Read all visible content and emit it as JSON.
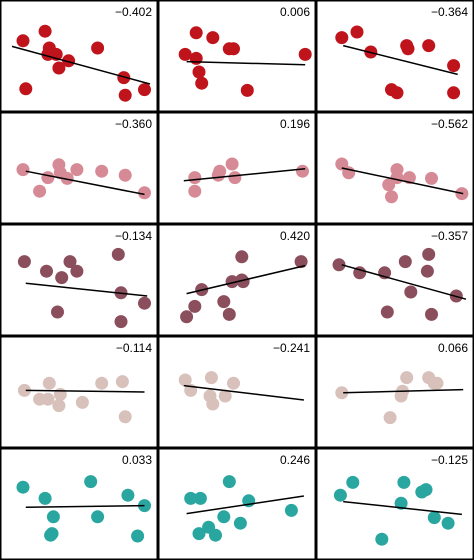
{
  "chart_data": {
    "type": "scatter",
    "layout": "5 rows x 3 columns of scatter panels, each with a fitted regression line and its correlation coefficient printed in the top-right corner",
    "x_range": [
      0,
      1
    ],
    "y_range": [
      0,
      1
    ],
    "row_colors": [
      "#c0141c",
      "#d68a96",
      "#8b4e5c",
      "#d8c0bb",
      "#2aa6a0"
    ],
    "panels": [
      {
        "row": 0,
        "col": 0,
        "label": "−0.402",
        "x": [
          0.08,
          0.26,
          0.27,
          0.32,
          0.34,
          0.41,
          0.62,
          0.81,
          0.82,
          0.96,
          0.1,
          0.24
        ],
        "y": [
          0.79,
          0.62,
          0.7,
          0.62,
          0.45,
          0.54,
          0.7,
          0.33,
          0.11,
          0.18,
          0.19,
          0.91
        ],
        "fit": [
          [
            0.0,
            0.72
          ],
          [
            1.0,
            0.25
          ]
        ]
      },
      {
        "row": 0,
        "col": 1,
        "label": "0.006",
        "x": [
          0.11,
          0.19,
          0.19,
          0.21,
          0.23,
          0.31,
          0.43,
          0.46,
          0.56,
          0.98
        ],
        "y": [
          0.62,
          0.89,
          0.57,
          0.4,
          0.26,
          0.83,
          0.69,
          0.69,
          0.17,
          0.62
        ],
        "fit": [
          [
            0.12,
            0.53
          ],
          [
            0.98,
            0.49
          ]
        ]
      },
      {
        "row": 0,
        "col": 2,
        "label": "−0.364",
        "x": [
          0.1,
          0.21,
          0.31,
          0.57,
          0.58,
          0.73,
          0.91,
          0.46,
          0.5,
          0.91
        ],
        "y": [
          0.83,
          0.9,
          0.65,
          0.73,
          0.69,
          0.73,
          0.48,
          0.18,
          0.14,
          0.14
        ],
        "fit": [
          [
            0.11,
            0.73
          ],
          [
            0.94,
            0.37
          ]
        ]
      },
      {
        "row": 1,
        "col": 0,
        "label": "−0.360",
        "x": [
          0.08,
          0.2,
          0.26,
          0.34,
          0.35,
          0.4,
          0.47,
          0.65,
          0.82,
          0.96
        ],
        "y": [
          0.58,
          0.31,
          0.48,
          0.64,
          0.54,
          0.47,
          0.58,
          0.56,
          0.51,
          0.29
        ],
        "fit": [
          [
            0.1,
            0.56
          ],
          [
            0.96,
            0.27
          ]
        ]
      },
      {
        "row": 1,
        "col": 1,
        "label": "0.196",
        "x": [
          0.18,
          0.18,
          0.35,
          0.36,
          0.45,
          0.47,
          0.96
        ],
        "y": [
          0.48,
          0.31,
          0.51,
          0.56,
          0.65,
          0.48,
          0.56
        ],
        "fit": [
          [
            0.1,
            0.44
          ],
          [
            0.98,
            0.59
          ]
        ]
      },
      {
        "row": 1,
        "col": 2,
        "label": "−0.562",
        "x": [
          0.1,
          0.15,
          0.44,
          0.46,
          0.5,
          0.5,
          0.59,
          0.75,
          0.97
        ],
        "y": [
          0.65,
          0.54,
          0.39,
          0.24,
          0.58,
          0.48,
          0.48,
          0.47,
          0.28
        ],
        "fit": [
          [
            0.1,
            0.6
          ],
          [
            0.98,
            0.28
          ]
        ]
      },
      {
        "row": 2,
        "col": 0,
        "label": "−0.134",
        "x": [
          0.09,
          0.25,
          0.36,
          0.42,
          0.47,
          0.77,
          0.96,
          0.33,
          0.79,
          0.79
        ],
        "y": [
          0.83,
          0.71,
          0.63,
          0.83,
          0.71,
          0.92,
          0.31,
          0.2,
          0.08,
          0.44
        ],
        "fit": [
          [
            0.1,
            0.56
          ],
          [
            0.98,
            0.4
          ]
        ]
      },
      {
        "row": 2,
        "col": 1,
        "label": "0.420",
        "x": [
          0.12,
          0.18,
          0.23,
          0.39,
          0.45,
          0.52,
          0.53,
          0.52,
          0.95,
          0.43
        ],
        "y": [
          0.14,
          0.27,
          0.48,
          0.33,
          0.58,
          0.6,
          0.58,
          0.89,
          0.83,
          0.17
        ],
        "fit": [
          [
            0.12,
            0.43
          ],
          [
            0.98,
            0.78
          ]
        ]
      },
      {
        "row": 2,
        "col": 2,
        "label": "−0.357",
        "x": [
          0.08,
          0.23,
          0.41,
          0.56,
          0.72,
          0.73,
          0.6,
          0.93,
          0.43,
          0.75
        ],
        "y": [
          0.79,
          0.69,
          0.69,
          0.83,
          0.71,
          0.92,
          0.45,
          0.4,
          0.2,
          0.17
        ],
        "fit": [
          [
            0.1,
            0.79
          ],
          [
            1.0,
            0.36
          ]
        ]
      },
      {
        "row": 3,
        "col": 0,
        "label": "−0.114",
        "x": [
          0.09,
          0.2,
          0.26,
          0.34,
          0.35,
          0.51,
          0.65,
          0.8,
          0.82,
          0.27
        ],
        "y": [
          0.62,
          0.51,
          0.51,
          0.43,
          0.57,
          0.47,
          0.71,
          0.73,
          0.29,
          0.71
        ],
        "fit": [
          [
            0.1,
            0.62
          ],
          [
            0.96,
            0.6
          ]
        ]
      },
      {
        "row": 3,
        "col": 1,
        "label": "−0.241",
        "x": [
          0.11,
          0.15,
          0.29,
          0.31,
          0.4,
          0.46,
          0.3
        ],
        "y": [
          0.75,
          0.62,
          0.55,
          0.45,
          0.55,
          0.71,
          0.78
        ],
        "fit": [
          [
            0.1,
            0.68
          ],
          [
            0.97,
            0.5
          ]
        ]
      },
      {
        "row": 3,
        "col": 2,
        "label": "0.066",
        "x": [
          0.1,
          0.45,
          0.53,
          0.54,
          0.57,
          0.73,
          0.79,
          0.77
        ],
        "y": [
          0.59,
          0.28,
          0.55,
          0.61,
          0.78,
          0.78,
          0.71,
          0.71
        ],
        "fit": [
          [
            0.11,
            0.59
          ],
          [
            0.98,
            0.63
          ]
        ]
      },
      {
        "row": 4,
        "col": 0,
        "label": "0.033",
        "x": [
          0.08,
          0.24,
          0.3,
          0.29,
          0.57,
          0.62,
          0.84,
          0.91,
          0.96,
          0.28
        ],
        "y": [
          0.81,
          0.67,
          0.44,
          0.23,
          0.88,
          0.44,
          0.71,
          0.2,
          0.58,
          0.21
        ],
        "fit": [
          [
            0.1,
            0.56
          ],
          [
            0.96,
            0.58
          ]
        ]
      },
      {
        "row": 4,
        "col": 1,
        "label": "0.246",
        "x": [
          0.15,
          0.22,
          0.21,
          0.28,
          0.33,
          0.39,
          0.43,
          0.51,
          0.57,
          0.88
        ],
        "y": [
          0.67,
          0.67,
          0.23,
          0.31,
          0.21,
          0.44,
          0.88,
          0.36,
          0.64,
          0.52
        ],
        "fit": [
          [
            0.12,
            0.48
          ],
          [
            0.97,
            0.7
          ]
        ]
      },
      {
        "row": 4,
        "col": 2,
        "label": "−0.125",
        "x": [
          0.09,
          0.18,
          0.39,
          0.53,
          0.55,
          0.68,
          0.71,
          0.77,
          0.87
        ],
        "y": [
          0.71,
          0.87,
          0.16,
          0.61,
          0.87,
          0.75,
          0.78,
          0.43,
          0.36
        ],
        "fit": [
          [
            0.11,
            0.63
          ],
          [
            0.97,
            0.47
          ]
        ]
      }
    ]
  }
}
